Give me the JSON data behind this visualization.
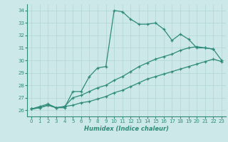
{
  "line1_x": [
    0,
    1,
    2,
    3,
    4,
    5,
    6,
    7,
    8,
    9,
    10,
    11,
    12,
    13,
    14,
    15,
    16,
    17,
    18,
    19,
    20,
    21,
    22
  ],
  "line1_y": [
    26.1,
    26.3,
    26.5,
    26.2,
    26.2,
    27.5,
    27.5,
    28.7,
    29.4,
    29.5,
    34.0,
    33.9,
    33.3,
    32.9,
    32.9,
    33.0,
    32.5,
    31.6,
    32.1,
    31.7,
    31.0,
    31.0,
    30.9
  ],
  "line2_x": [
    0,
    1,
    2,
    3,
    4,
    5,
    6,
    7,
    8,
    9,
    10,
    11,
    12,
    13,
    14,
    15,
    16,
    17,
    18,
    19,
    20,
    21,
    22,
    23
  ],
  "line2_y": [
    26.1,
    26.2,
    26.4,
    26.2,
    26.3,
    26.4,
    26.6,
    26.7,
    26.9,
    27.1,
    27.4,
    27.6,
    27.9,
    28.2,
    28.5,
    28.7,
    28.9,
    29.1,
    29.3,
    29.5,
    29.7,
    29.9,
    30.1,
    29.9
  ],
  "line3_x": [
    0,
    1,
    2,
    3,
    4,
    5,
    6,
    7,
    8,
    9,
    10,
    11,
    12,
    13,
    14,
    15,
    16,
    17,
    18,
    19,
    20,
    21,
    22,
    23
  ],
  "line3_y": [
    26.1,
    26.2,
    26.4,
    26.2,
    26.3,
    27.0,
    27.2,
    27.5,
    27.8,
    28.0,
    28.4,
    28.7,
    29.1,
    29.5,
    29.8,
    30.1,
    30.3,
    30.5,
    30.8,
    31.0,
    31.1,
    31.0,
    30.9,
    30.0
  ],
  "line_color": "#2e8b7a",
  "bg_color": "#cce8e8",
  "grid_color": "#b0d4d4",
  "xlabel": "Humidex (Indice chaleur)",
  "ylim": [
    25.5,
    34.5
  ],
  "xlim": [
    -0.5,
    23.5
  ],
  "yticks": [
    26,
    27,
    28,
    29,
    30,
    31,
    32,
    33,
    34
  ],
  "xticks": [
    0,
    1,
    2,
    3,
    4,
    5,
    6,
    7,
    8,
    9,
    10,
    11,
    12,
    13,
    14,
    15,
    16,
    17,
    18,
    19,
    20,
    21,
    22,
    23
  ]
}
